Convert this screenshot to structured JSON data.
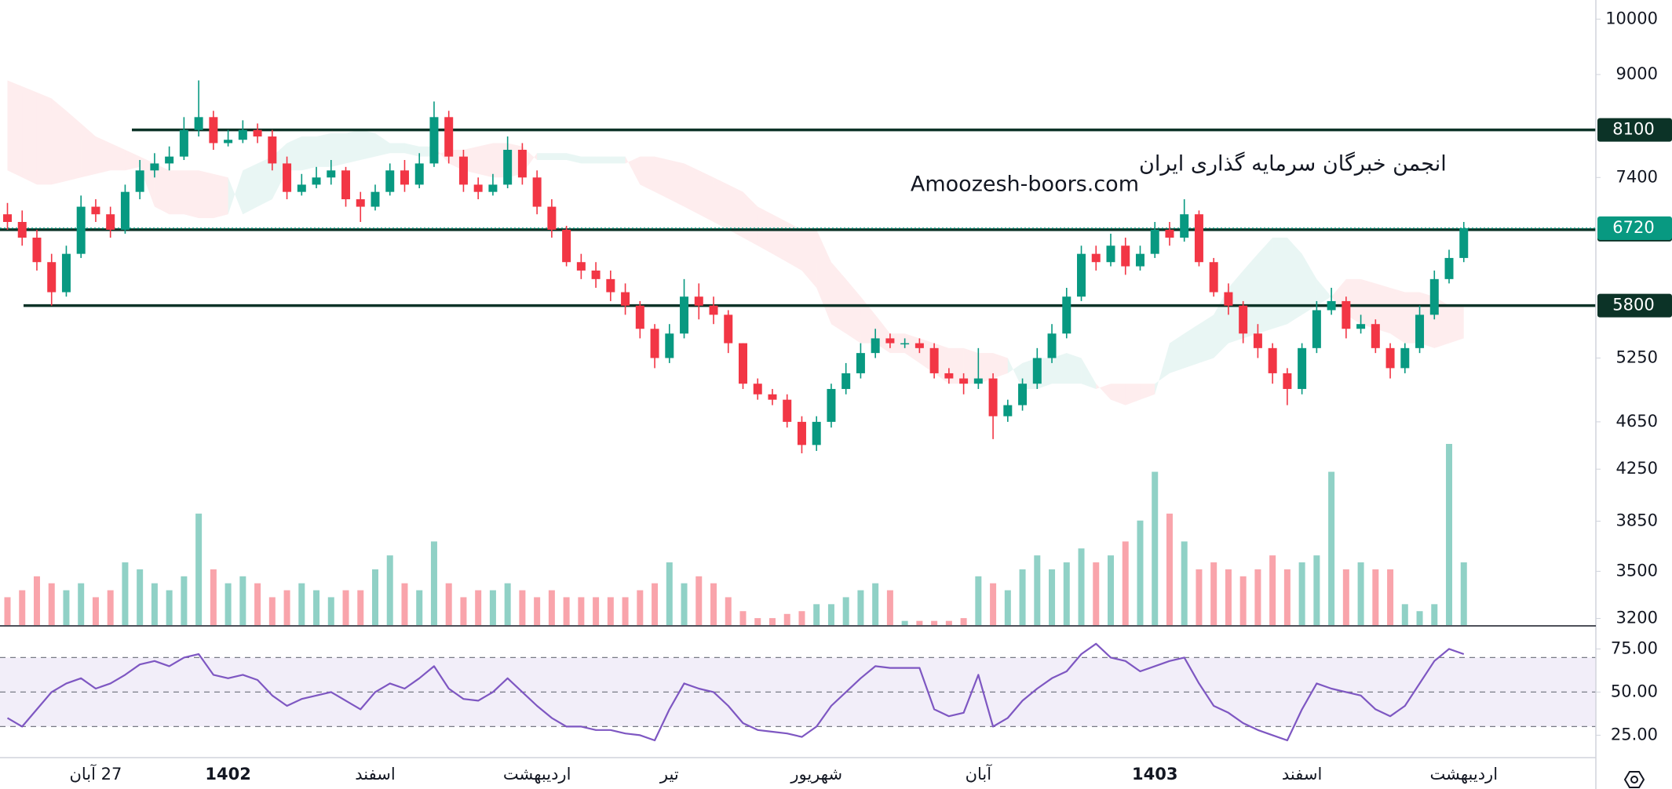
{
  "chart_data": {
    "type": "candlestick",
    "annotations": [
      "انجمن خبرگان سرمایه گذاری ایران",
      "Amoozesh-boors.com"
    ],
    "categories": [
      null,
      null,
      null,
      null,
      null,
      null,
      "27 آبان",
      null,
      null,
      null,
      null,
      null,
      null,
      null,
      null,
      "1402",
      null,
      null,
      null,
      null,
      null,
      null,
      null,
      null,
      null,
      "اسفند",
      null,
      null,
      null,
      null,
      null,
      null,
      null,
      null,
      null,
      null,
      "اردیبهشت",
      null,
      null,
      null,
      null,
      null,
      null,
      null,
      null,
      "تیر",
      null,
      null,
      null,
      null,
      null,
      null,
      null,
      null,
      null,
      "شهریور",
      null,
      null,
      null,
      null,
      null,
      null,
      null,
      null,
      null,
      null,
      "آبان",
      null,
      null,
      null,
      null,
      null,
      null,
      null,
      null,
      null,
      null,
      null,
      "1403",
      null,
      null,
      null,
      null,
      null,
      null,
      null,
      null,
      null,
      "اسفند",
      null,
      null,
      null,
      null,
      null,
      null,
      null,
      null,
      null,
      null,
      "اردیبهشت"
    ],
    "open": [
      6900,
      6800,
      6600,
      6300,
      5950,
      6400,
      7000,
      6900,
      6700,
      7200,
      7500,
      7600,
      7700,
      8100,
      8300,
      7900,
      7950,
      8100,
      8000,
      7600,
      7200,
      7300,
      7400,
      7500,
      7100,
      7000,
      7200,
      7500,
      7300,
      7600,
      8300,
      7700,
      7300,
      7200,
      7300,
      7800,
      7400,
      7000,
      6700,
      6300,
      6200,
      6100,
      5950,
      5800,
      5550,
      5250,
      5500,
      5900,
      5800,
      5700,
      5400,
      5000,
      4900,
      4850,
      4650,
      4450,
      4650,
      4950,
      5100,
      5300,
      5450,
      5400,
      5400,
      5350,
      5100,
      5050,
      5000,
      5050,
      4700,
      4800,
      5000,
      5250,
      5500,
      5900,
      6400,
      6300,
      6500,
      6250,
      6400,
      6700,
      6600,
      6900,
      6300,
      5950,
      5800,
      5500,
      5350,
      5100,
      4950,
      5350,
      5750,
      5850,
      5550,
      5600,
      5350,
      5150,
      5350,
      5700,
      6100,
      6350
    ],
    "high": [
      7050,
      6950,
      6700,
      6400,
      6500,
      7150,
      7100,
      7000,
      7300,
      7650,
      7750,
      7850,
      8300,
      8900,
      8400,
      8100,
      8250,
      8200,
      8100,
      7700,
      7450,
      7550,
      7650,
      7550,
      7200,
      7300,
      7600,
      7650,
      7750,
      8550,
      8400,
      7800,
      7400,
      7450,
      8000,
      7900,
      7500,
      7100,
      6750,
      6400,
      6300,
      6200,
      6050,
      5850,
      5600,
      5600,
      6100,
      6050,
      5900,
      5750,
      5400,
      5050,
      4950,
      4900,
      4700,
      4700,
      5000,
      5200,
      5400,
      5550,
      5500,
      5450,
      5450,
      5400,
      5150,
      5100,
      5350,
      5100,
      4850,
      5050,
      5350,
      5600,
      6000,
      6500,
      6500,
      6650,
      6600,
      6500,
      6800,
      6800,
      7100,
      6950,
      6350,
      6050,
      5850,
      5600,
      5400,
      5150,
      5400,
      5850,
      6000,
      5900,
      5700,
      5650,
      5400,
      5400,
      5800,
      6200,
      6450,
      6800
    ],
    "low": [
      6700,
      6500,
      6200,
      5800,
      5900,
      6350,
      6800,
      6600,
      6650,
      7100,
      7400,
      7500,
      7650,
      8000,
      7800,
      7850,
      7900,
      7900,
      7500,
      7100,
      7150,
      7250,
      7300,
      7000,
      6800,
      6950,
      7150,
      7200,
      7250,
      7550,
      7600,
      7200,
      7100,
      7150,
      7250,
      7300,
      6900,
      6600,
      6250,
      6100,
      6000,
      5850,
      5700,
      5450,
      5150,
      5200,
      5450,
      5650,
      5600,
      5300,
      4950,
      4850,
      4800,
      4600,
      4380,
      4400,
      4600,
      4900,
      5050,
      5250,
      5350,
      5350,
      5300,
      5050,
      5000,
      4900,
      4950,
      4500,
      4650,
      4750,
      4950,
      5200,
      5450,
      5850,
      6200,
      6250,
      6150,
      6200,
      6350,
      6500,
      6550,
      6250,
      5900,
      5700,
      5400,
      5250,
      5000,
      4800,
      4900,
      5300,
      5700,
      5450,
      5500,
      5300,
      5050,
      5100,
      5300,
      5650,
      6050,
      6300
    ],
    "close": [
      6800,
      6600,
      6300,
      5950,
      6400,
      7000,
      6900,
      6700,
      7200,
      7500,
      7600,
      7700,
      8100,
      8300,
      7900,
      7950,
      8100,
      8000,
      7600,
      7200,
      7300,
      7400,
      7500,
      7100,
      7000,
      7200,
      7500,
      7300,
      7600,
      8300,
      7700,
      7300,
      7200,
      7300,
      7800,
      7400,
      7000,
      6700,
      6300,
      6200,
      6100,
      5950,
      5800,
      5550,
      5250,
      5500,
      5900,
      5800,
      5700,
      5400,
      5000,
      4900,
      4850,
      4650,
      4450,
      4650,
      4950,
      5100,
      5300,
      5450,
      5400,
      5400,
      5350,
      5100,
      5050,
      5000,
      5050,
      4700,
      4800,
      5000,
      5250,
      5500,
      5900,
      6400,
      6300,
      6500,
      6250,
      6400,
      6700,
      6600,
      6900,
      6300,
      5950,
      5800,
      5500,
      5350,
      5100,
      4950,
      5350,
      5750,
      5850,
      5550,
      5600,
      5350,
      5150,
      5350,
      5700,
      6100,
      6350,
      6720
    ],
    "up_color": "#089981",
    "down_color": "#f23645",
    "log_scale": true,
    "ylim": [
      3155,
      10370
    ],
    "yticks": [
      10000,
      9000,
      7400,
      5250,
      4650,
      4250,
      3850,
      3500,
      3200
    ],
    "levels": [
      8100,
      6700,
      5800
    ],
    "level_color": "#0c3327",
    "last_price": 6720,
    "volume": [
      20,
      25,
      35,
      30,
      25,
      30,
      20,
      25,
      45,
      40,
      30,
      25,
      35,
      80,
      40,
      30,
      35,
      30,
      20,
      25,
      30,
      25,
      20,
      25,
      25,
      40,
      50,
      30,
      25,
      60,
      30,
      20,
      25,
      25,
      30,
      25,
      20,
      25,
      20,
      20,
      20,
      20,
      20,
      25,
      30,
      45,
      30,
      35,
      30,
      20,
      10,
      5,
      5,
      8,
      10,
      15,
      15,
      20,
      25,
      30,
      25,
      3,
      3,
      3,
      3,
      5,
      35,
      30,
      25,
      40,
      50,
      40,
      45,
      55,
      45,
      50,
      60,
      75,
      110,
      80,
      60,
      40,
      45,
      40,
      35,
      40,
      50,
      40,
      45,
      50,
      110,
      40,
      45,
      40,
      40,
      15,
      10,
      15,
      130,
      45
    ],
    "cloud": {
      "span_a": [
        7500,
        7400,
        7300,
        7300,
        7350,
        7400,
        7450,
        7500,
        7500,
        7550,
        7000,
        6900,
        6900,
        6850,
        6850,
        6900,
        7500,
        7600,
        7700,
        7900,
        8000,
        8000,
        8050,
        8050,
        8100,
        8050,
        7900,
        7900,
        7850,
        7850,
        7600,
        7500,
        7450,
        7400,
        7400,
        7450,
        7750,
        7750,
        7750,
        7700,
        7700,
        7700,
        7700,
        7300,
        7200,
        7100,
        7000,
        6900,
        6800,
        6700,
        6600,
        6500,
        6400,
        6300,
        6200,
        6000,
        5600,
        5500,
        5400,
        5400,
        5300,
        5300,
        5200,
        5100,
        5000,
        5000,
        5000,
        5050,
        5100,
        5200,
        5250,
        5250,
        5300,
        5250,
        5000,
        4850,
        4800,
        4850,
        4900,
        5400,
        5500,
        5600,
        5700,
        6000,
        6200,
        6400,
        6600,
        6600,
        6400,
        6100,
        5900,
        5700,
        5600,
        5550,
        5500,
        5400,
        5400,
        5350,
        5400,
        5450
      ],
      "span_b": [
        8900,
        8800,
        8700,
        8600,
        8400,
        8200,
        8000,
        7900,
        7800,
        7700,
        7600,
        7500,
        7500,
        7500,
        7450,
        7400,
        6900,
        7000,
        7100,
        7500,
        7500,
        7550,
        7550,
        7600,
        7650,
        7700,
        7750,
        7750,
        7700,
        7700,
        7800,
        7800,
        7850,
        7900,
        7900,
        7850,
        7650,
        7650,
        7650,
        7600,
        7600,
        7600,
        7600,
        7700,
        7700,
        7650,
        7600,
        7500,
        7400,
        7300,
        7200,
        7000,
        6900,
        6800,
        6700,
        6700,
        6300,
        6100,
        5900,
        5700,
        5500,
        5500,
        5450,
        5400,
        5350,
        5350,
        5300,
        5300,
        5250,
        4950,
        4950,
        5000,
        5000,
        5000,
        4950,
        5000,
        5000,
        5000,
        5000,
        5100,
        5150,
        5200,
        5250,
        5400,
        5450,
        5500,
        5550,
        5600,
        5700,
        5800,
        5900,
        6100,
        6100,
        6050,
        6000,
        5950,
        5950,
        5900,
        5800,
        5800
      ]
    },
    "rsi": {
      "values": [
        35,
        30,
        40,
        50,
        55,
        58,
        52,
        55,
        60,
        66,
        68,
        65,
        70,
        72,
        60,
        58,
        60,
        57,
        48,
        42,
        46,
        48,
        50,
        45,
        40,
        50,
        55,
        52,
        58,
        65,
        52,
        46,
        45,
        50,
        58,
        50,
        42,
        35,
        30,
        30,
        28,
        28,
        26,
        25,
        22,
        40,
        55,
        52,
        50,
        42,
        32,
        28,
        27,
        26,
        24,
        30,
        42,
        50,
        58,
        65,
        64,
        64,
        64,
        40,
        36,
        38,
        60,
        30,
        35,
        45,
        52,
        58,
        62,
        72,
        78,
        70,
        68,
        62,
        65,
        68,
        70,
        55,
        42,
        38,
        32,
        28,
        25,
        22,
        40,
        55,
        52,
        50,
        48,
        40,
        36,
        42,
        55,
        68,
        75,
        72
      ],
      "color": "#7e57c2",
      "ylim": [
        12,
        87
      ],
      "yticks": [
        {
          "value": 75,
          "label": "75.00"
        },
        {
          "value": 50,
          "label": "50.00"
        },
        {
          "value": 25,
          "label": "25.00"
        }
      ],
      "levels": [
        70,
        50,
        30
      ]
    }
  }
}
